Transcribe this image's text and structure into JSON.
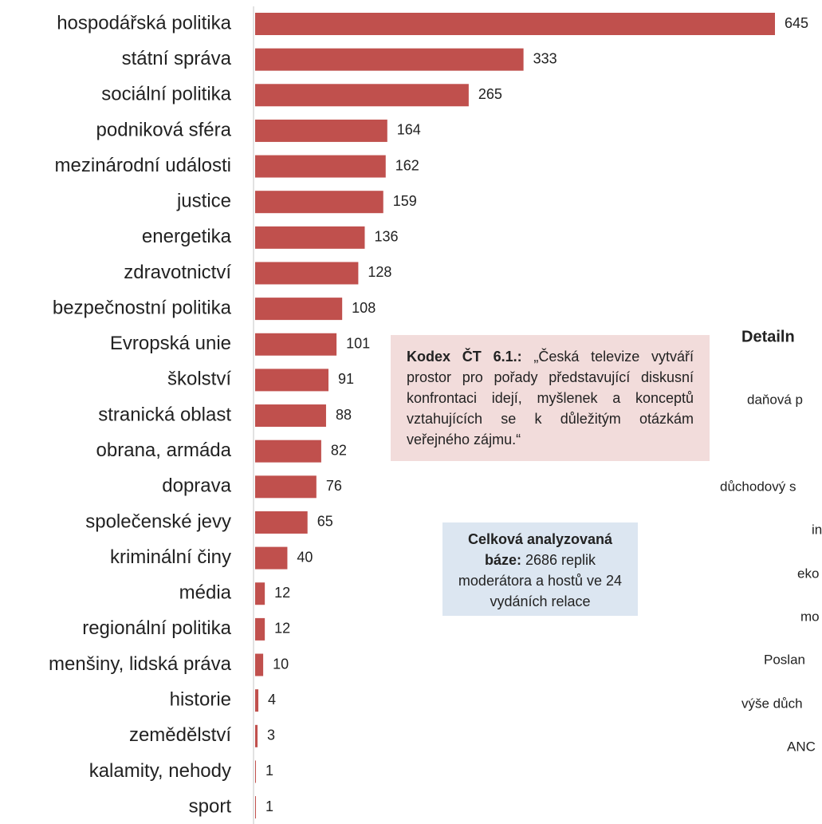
{
  "chart_data": {
    "type": "bar",
    "orientation": "horizontal",
    "color": "#c0504d",
    "categories": [
      "hospodářská politika",
      "státní správa",
      "sociální politika",
      "podniková sféra",
      "mezinárodní události",
      "justice",
      "energetika",
      "zdravotnictví",
      "bezpečnostní politika",
      "Evropská unie",
      "školství",
      "stranická oblast",
      "obrana, armáda",
      "doprava",
      "společenské jevy",
      "kriminální činy",
      "média",
      "regionální politika",
      "menšiny, lidská práva",
      "historie",
      "zemědělství",
      "kalamity, nehody",
      "sport"
    ],
    "values": [
      645,
      333,
      265,
      164,
      162,
      159,
      136,
      128,
      108,
      101,
      91,
      88,
      82,
      76,
      65,
      40,
      12,
      12,
      10,
      4,
      3,
      1,
      1
    ]
  },
  "annotations": {
    "kodex": {
      "bold": "Kodex ČT 6.1.:",
      "text": "„Česká televize vytváří prostor pro pořady představující diskusní konfrontaci idejí, myšlenek a konceptů vztahujících se k důležitým otázkám veřejného zájmu.“"
    },
    "base": {
      "bold": "Celková analyzovaná báze:",
      "text": "2686 replik moderátora a hostů ve 24 vydáních relace"
    }
  },
  "cropped_chart": {
    "title": "Detailn",
    "labels": [
      "daňová p",
      "důchodový s",
      "in",
      "eko",
      "mo",
      "Poslan",
      "výše důch",
      "ANC"
    ]
  }
}
